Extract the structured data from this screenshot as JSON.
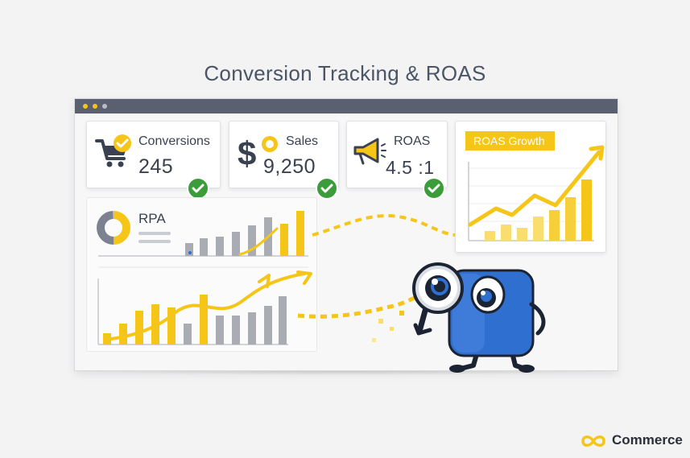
{
  "title": "Conversion Tracking & ROAS",
  "cards": {
    "conversions": {
      "label": "Conversions",
      "value": "245",
      "icon": "shopping-cart-icon"
    },
    "sales": {
      "label": "Sales",
      "value": "9,250",
      "icon": "dollar-sign-icon"
    },
    "roas": {
      "label": "ROAS",
      "value": "4.5 :1",
      "icon": "megaphone-icon"
    }
  },
  "roas_growth": {
    "label": "ROAS Growth"
  },
  "rpa": {
    "label": "RPA"
  },
  "brand": {
    "name": "Commerce",
    "icon": "infinity-logo-icon"
  },
  "colors": {
    "yellow": "#f5c518",
    "gray": "#a9acb3",
    "green": "#3a9d3a",
    "blue": "#2f6fd0"
  }
}
